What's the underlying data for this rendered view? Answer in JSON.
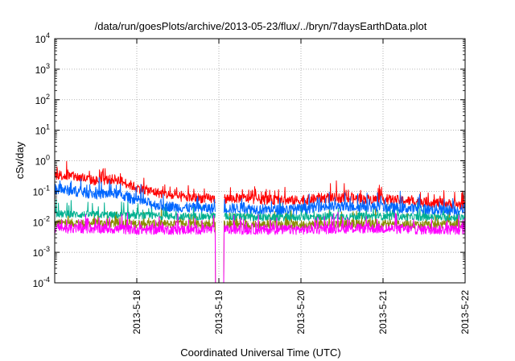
{
  "chart_data": {
    "type": "line",
    "title": "/data/run/goesPlots/archive/2013-05-23/flux/../bryn/7daysEarthData.plot",
    "xlabel": "Coordinated Universal Time (UTC)",
    "ylabel": "cSv/day",
    "yscale": "log",
    "ylim": [
      0.0001,
      10000
    ],
    "yticks": [
      {
        "value": 0.0001,
        "base": "10",
        "exp": "-4"
      },
      {
        "value": 0.001,
        "base": "10",
        "exp": "-3"
      },
      {
        "value": 0.01,
        "base": "10",
        "exp": "-2"
      },
      {
        "value": 0.1,
        "base": "10",
        "exp": "-1"
      },
      {
        "value": 1,
        "base": "10",
        "exp": "0"
      },
      {
        "value": 10,
        "base": "10",
        "exp": "1"
      },
      {
        "value": 100,
        "base": "10",
        "exp": "2"
      },
      {
        "value": 1000,
        "base": "10",
        "exp": "3"
      },
      {
        "value": 10000,
        "base": "10",
        "exp": "4"
      }
    ],
    "xlim": [
      "2013-05-17",
      "2013-05-22"
    ],
    "xticks": [
      "2013-5-18",
      "2013-5-19",
      "2013-5-20",
      "2013-5-21",
      "2013-5-22"
    ],
    "grid": true,
    "series": [
      {
        "color": "#ff0000",
        "x": [
          "2013-05-17",
          "2013-05-17T06:00",
          "2013-05-17T12:00",
          "2013-05-17T18:00",
          "2013-05-18",
          "2013-05-18T06:00",
          "2013-05-18T12:00",
          "2013-05-18T18:00",
          "2013-05-19",
          "2013-05-19T06:00",
          "2013-05-19T12:00",
          "2013-05-19T18:00",
          "2013-05-20",
          "2013-05-20T06:00",
          "2013-05-20T12:00",
          "2013-05-20T18:00",
          "2013-05-21",
          "2013-05-21T06:00",
          "2013-05-21T12:00",
          "2013-05-21T18:00",
          "2013-05-22"
        ],
        "y": [
          0.35,
          0.3,
          0.22,
          0.25,
          0.13,
          0.09,
          0.065,
          0.06,
          0.055,
          0.06,
          0.055,
          0.05,
          0.05,
          0.06,
          0.06,
          0.055,
          0.055,
          0.05,
          0.045,
          0.04,
          0.035
        ]
      },
      {
        "color": "#0066ff",
        "x": [
          "2013-05-17",
          "2013-05-17T06:00",
          "2013-05-17T12:00",
          "2013-05-17T18:00",
          "2013-05-18",
          "2013-05-18T06:00",
          "2013-05-18T12:00",
          "2013-05-18T18:00",
          "2013-05-19",
          "2013-05-19T06:00",
          "2013-05-19T12:00",
          "2013-05-19T18:00",
          "2013-05-20",
          "2013-05-20T06:00",
          "2013-05-20T12:00",
          "2013-05-20T18:00",
          "2013-05-21",
          "2013-05-21T06:00",
          "2013-05-21T12:00",
          "2013-05-21T18:00",
          "2013-05-22"
        ],
        "y": [
          0.12,
          0.1,
          0.08,
          0.085,
          0.05,
          0.035,
          0.03,
          0.028,
          0.027,
          0.028,
          0.026,
          0.025,
          0.026,
          0.032,
          0.03,
          0.032,
          0.03,
          0.028,
          0.026,
          0.024,
          0.025
        ]
      },
      {
        "color": "#00b090",
        "x": [
          "2013-05-17",
          "2013-05-17T12:00",
          "2013-05-18",
          "2013-05-18T12:00",
          "2013-05-19",
          "2013-05-19T12:00",
          "2013-05-20",
          "2013-05-20T12:00",
          "2013-05-21",
          "2013-05-21T12:00",
          "2013-05-22"
        ],
        "y": [
          0.018,
          0.017,
          0.016,
          0.015,
          0.015,
          0.014,
          0.014,
          0.015,
          0.015,
          0.014,
          0.014
        ]
      },
      {
        "color": "#8a8a00",
        "x": [
          "2013-05-17",
          "2013-05-17T12:00",
          "2013-05-18",
          "2013-05-18T12:00",
          "2013-05-19",
          "2013-05-19T12:00",
          "2013-05-20",
          "2013-05-20T12:00",
          "2013-05-21",
          "2013-05-21T12:00",
          "2013-05-22"
        ],
        "y": [
          0.009,
          0.009,
          0.0085,
          0.0085,
          0.008,
          0.008,
          0.008,
          0.0085,
          0.0085,
          0.008,
          0.008
        ]
      },
      {
        "color": "#ff00ff",
        "x": [
          "2013-05-17",
          "2013-05-17T12:00",
          "2013-05-18",
          "2013-05-18T12:00",
          "2013-05-19",
          "2013-05-19T12:00",
          "2013-05-20",
          "2013-05-20T12:00",
          "2013-05-21",
          "2013-05-21T12:00",
          "2013-05-22"
        ],
        "y": [
          0.006,
          0.006,
          0.0055,
          0.0055,
          0.0055,
          0.0055,
          0.0055,
          0.006,
          0.006,
          0.0055,
          0.0055
        ]
      }
    ],
    "gap": [
      "2013-05-18T23:00",
      "2013-05-19T01:30"
    ]
  }
}
